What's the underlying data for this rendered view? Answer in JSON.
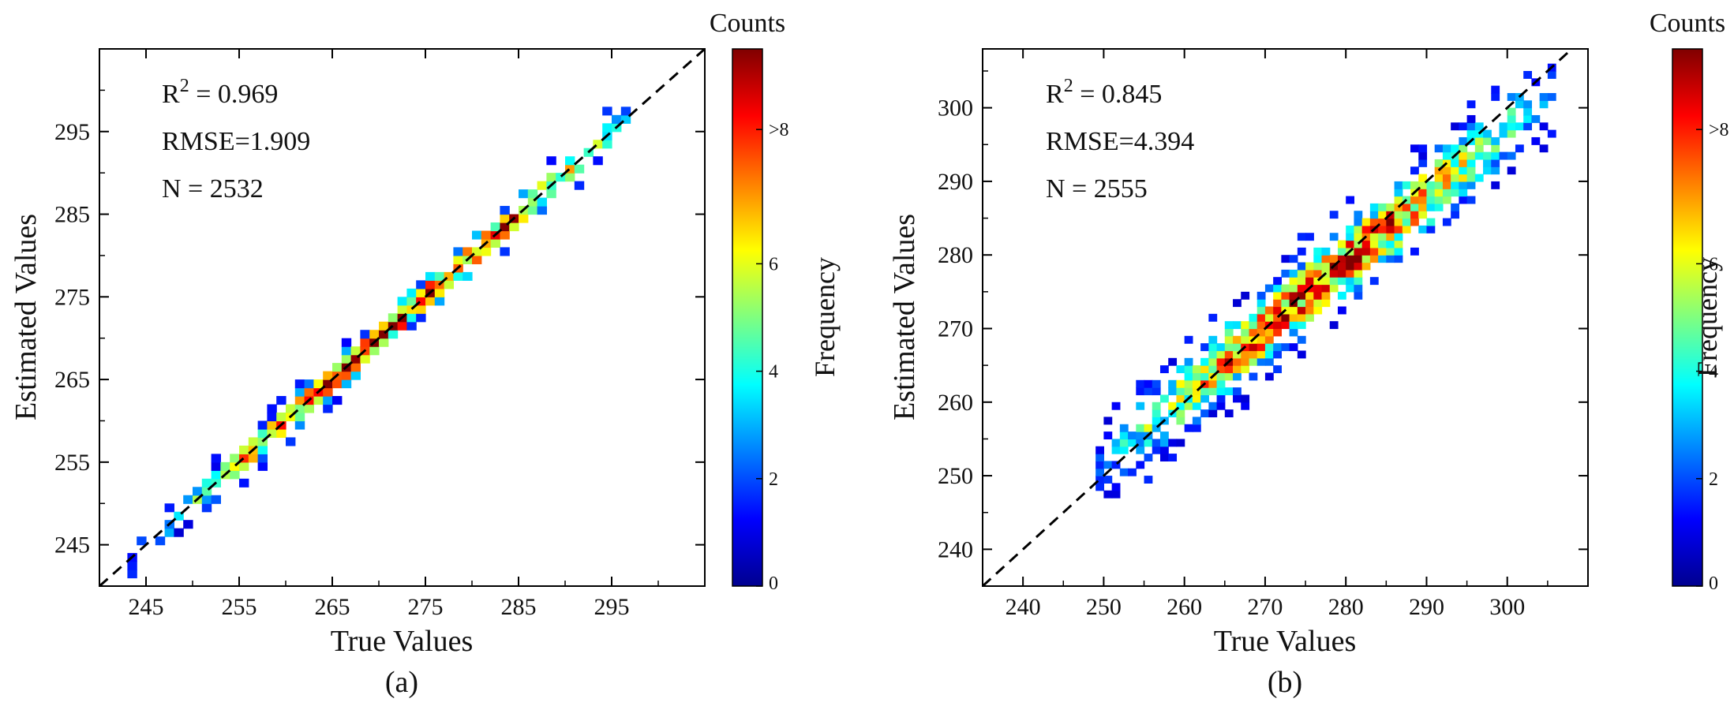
{
  "chart_data": [
    {
      "type": "heatmap",
      "panel_label": "(a)",
      "xlabel": "True Values",
      "ylabel": "Estimated Values",
      "xlim": [
        240,
        305
      ],
      "ylim": [
        240,
        305
      ],
      "xticks": [
        245,
        255,
        265,
        275,
        285,
        295
      ],
      "yticks": [
        245,
        255,
        265,
        275,
        285,
        295
      ],
      "stats": {
        "r2_prefix": "R",
        "r2_sup": "2",
        "r2_value": " = 0.969",
        "rmse": "RMSE=1.909",
        "n": "N = 2532"
      },
      "reference_line": "1:1",
      "colorbar": {
        "title": "Counts",
        "label": "Frequency",
        "range": [
          0,
          10
        ],
        "ticks": [
          "0",
          "2",
          "4",
          "6",
          ">8"
        ],
        "tick_values": [
          0,
          2,
          4,
          6,
          8.5
        ]
      },
      "density": {
        "x_range": [
          243.8,
          298
        ],
        "bias_slope": 1.0,
        "bias_intercept": 0,
        "scatter_sd": 1.3,
        "cell": 1.0,
        "max_count": 9.5,
        "seed": 11
      }
    },
    {
      "type": "heatmap",
      "panel_label": "(b)",
      "xlabel": "True Values",
      "ylabel": "Estimated Values",
      "xlim": [
        235,
        310
      ],
      "ylim": [
        235,
        308
      ],
      "xticks": [
        240,
        250,
        260,
        270,
        280,
        290,
        300
      ],
      "yticks": [
        240,
        250,
        260,
        270,
        280,
        290,
        300
      ],
      "stats": {
        "r2_prefix": "R",
        "r2_sup": "2",
        "r2_value": " = 0.845",
        "rmse": "RMSE=4.394",
        "n": "N = 2555"
      },
      "reference_line": "1:1",
      "colorbar": {
        "title": "Counts",
        "label": "Frequency",
        "range": [
          0,
          10
        ],
        "ticks": [
          "0",
          "2",
          "4",
          "6",
          ">8"
        ],
        "tick_values": [
          0,
          2,
          4,
          6,
          8.5
        ]
      },
      "density": {
        "x_range": [
          249,
          305
        ],
        "bias_slope": 0.9,
        "bias_intercept": 27,
        "scatter_sd": 3.2,
        "cell": 1.0,
        "max_count": 9.0,
        "seed": 23
      }
    }
  ]
}
